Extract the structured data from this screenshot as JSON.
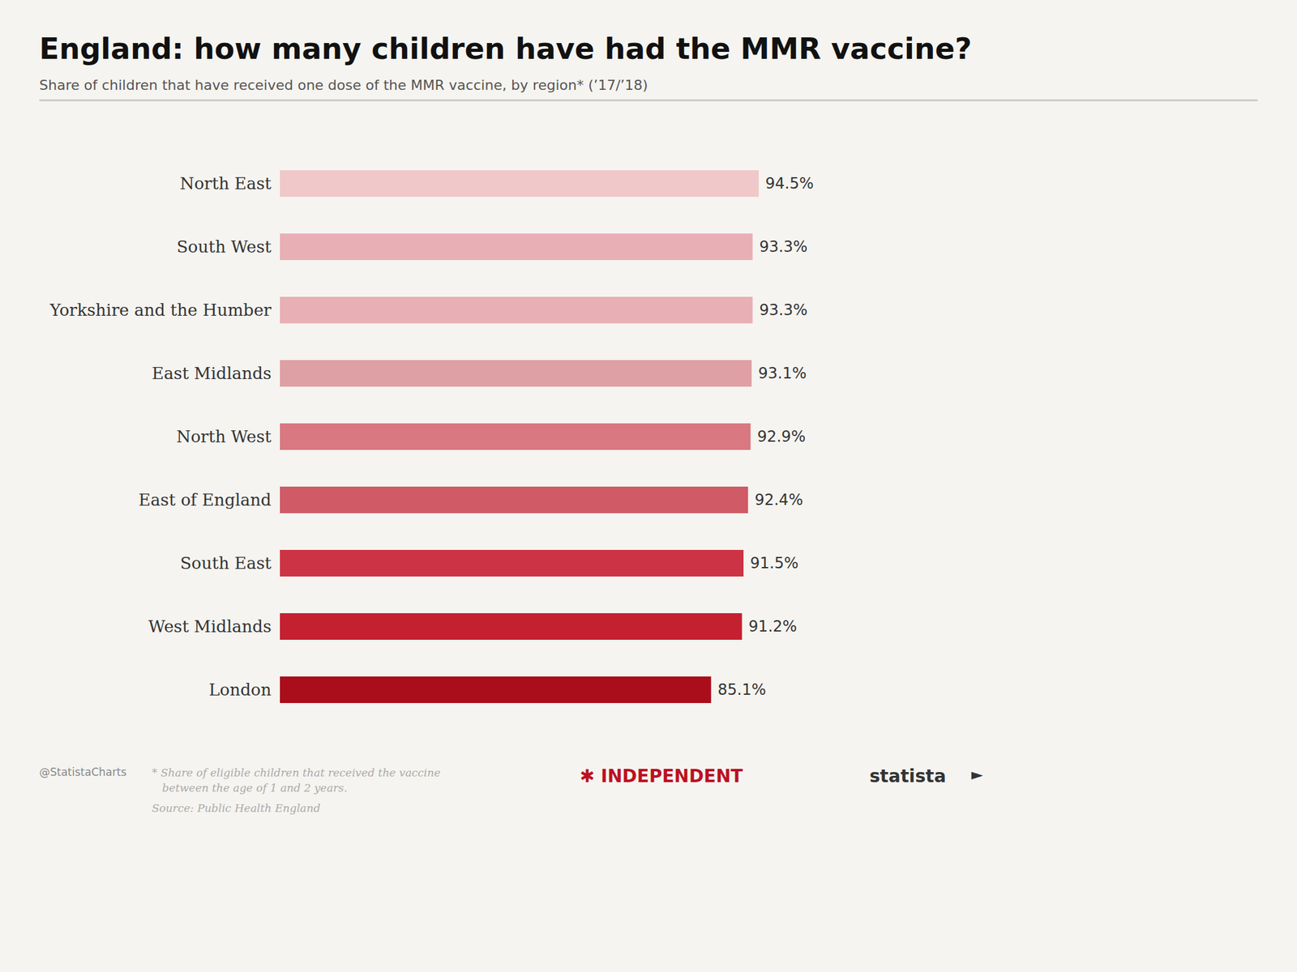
{
  "chart_data": {
    "type": "bar",
    "orientation": "horizontal",
    "title": "England: how many children have had the MMR vaccine?",
    "subtitle": "Share of children that have received one dose of the MMR vaccine, by region* (’17/’18)",
    "categories": [
      "North East",
      "South West",
      "Yorkshire and the Humber",
      "East Midlands",
      "North West",
      "East of England",
      "South East",
      "West Midlands",
      "London"
    ],
    "values": [
      94.5,
      93.3,
      93.3,
      93.1,
      92.9,
      92.4,
      91.5,
      91.2,
      85.1
    ],
    "value_labels": [
      "94.5%",
      "93.3%",
      "93.3%",
      "93.1%",
      "92.9%",
      "92.4%",
      "91.5%",
      "91.2%",
      "85.1%"
    ],
    "colors": [
      "#f0c8ca",
      "#e8b0b4",
      "#e8b0b4",
      "#dfa0a5",
      "#d97880",
      "#d05a65",
      "#cc3344",
      "#c42030",
      "#aa0e1a"
    ],
    "xlim": [
      0,
      100
    ],
    "data_labels": true,
    "tick_labels": "y",
    "grid": false,
    "annotations": [
      "@StatistaCharts",
      "* Share of eligible children that received the vaccine\n   between the age of 1 and 2 years.",
      "Source: Public Health England",
      "✱ INDEPENDENT",
      "statista",
      "►"
    ]
  }
}
